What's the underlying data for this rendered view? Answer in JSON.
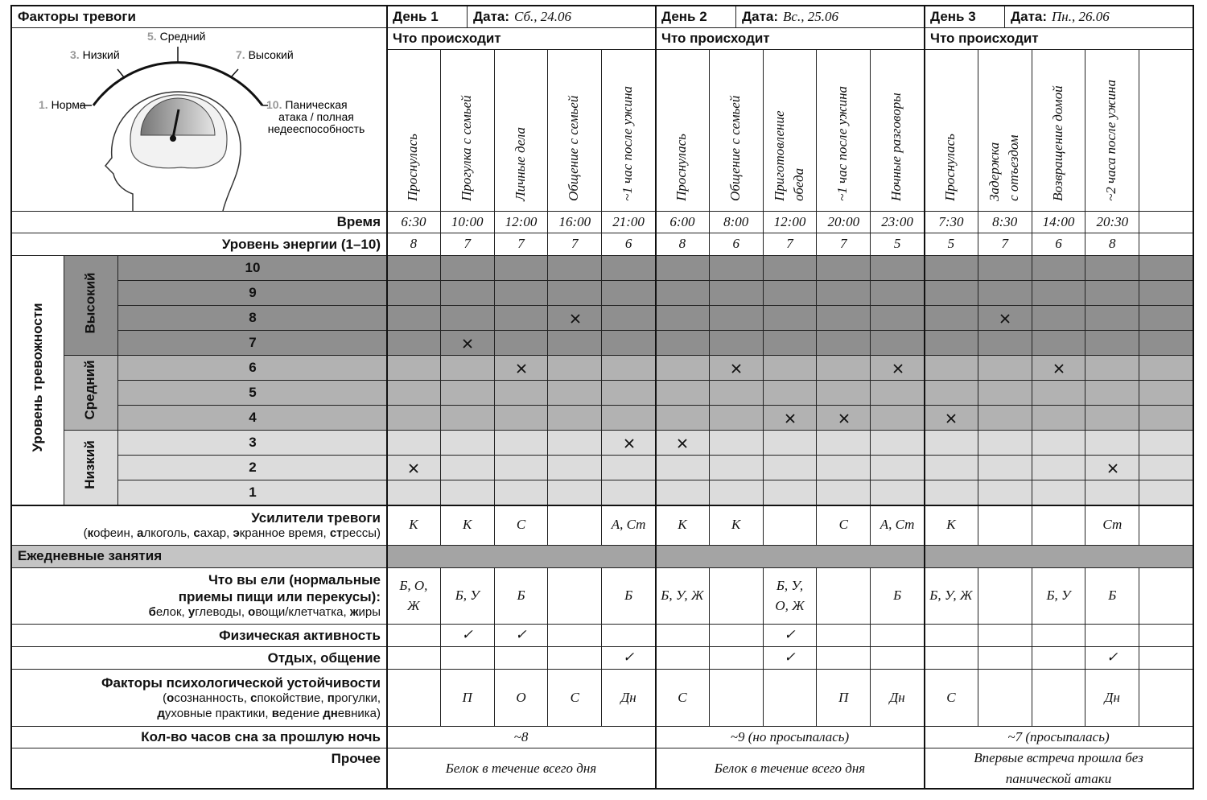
{
  "header": {
    "title": "Факторы тревоги"
  },
  "scale": [
    {
      "num": "1.",
      "lines": [
        "Норма"
      ]
    },
    {
      "num": "3.",
      "lines": [
        "Низкий"
      ]
    },
    {
      "num": "5.",
      "lines": [
        "Средний"
      ]
    },
    {
      "num": "7.",
      "lines": [
        "Высокий"
      ]
    },
    {
      "num": "10.",
      "lines": [
        "Паническая",
        "атака / полная",
        "недееспособность"
      ]
    }
  ],
  "row_labels": {
    "time": "Время",
    "energy": "Уровень энергии (1–10)",
    "anxiety": "Уровень тревожности",
    "boosters": {
      "title": "Усилители тревоги",
      "note": [
        {
          "n": "("
        },
        {
          "b": "к"
        },
        {
          "n": "офеин, "
        },
        {
          "b": "а"
        },
        {
          "n": "лкоголь, "
        },
        {
          "b": "с"
        },
        {
          "n": "ахар, "
        },
        {
          "b": "э"
        },
        {
          "n": "кранное время, "
        },
        {
          "b": "ст"
        },
        {
          "n": "рессы)"
        }
      ]
    },
    "daily": "Ежедневные занятия",
    "food": {
      "title": [
        "Что вы ели (нормальные",
        "приемы пищи или перекусы):"
      ],
      "note": [
        {
          "b": "б"
        },
        {
          "n": "елок, "
        },
        {
          "b": "у"
        },
        {
          "n": "глеводы, "
        },
        {
          "b": "о"
        },
        {
          "n": "вощи/клетчатка, "
        },
        {
          "b": "ж"
        },
        {
          "n": "иры"
        }
      ]
    },
    "physical": "Физическая активность",
    "rest": "Отдых, общение",
    "resilience": {
      "title": "Факторы психологической устойчивости",
      "note_lines": [
        [
          {
            "n": "("
          },
          {
            "b": "о"
          },
          {
            "n": "сознанность, "
          },
          {
            "b": "с"
          },
          {
            "n": "покойствие, "
          },
          {
            "b": "п"
          },
          {
            "n": "рогулки,"
          }
        ],
        [
          {
            "b": "д"
          },
          {
            "n": "уховные практики, "
          },
          {
            "b": "в"
          },
          {
            "n": "едение "
          },
          {
            "b": "дн"
          },
          {
            "n": "евника)"
          }
        ]
      ]
    },
    "sleep": "Кол-во часов сна за прошлую ночь",
    "other": "Прочее"
  },
  "anxiety_groups": [
    {
      "name": "Высокий",
      "levels": [
        10,
        9,
        8,
        7
      ]
    },
    {
      "name": "Средний",
      "levels": [
        6,
        5,
        4
      ]
    },
    {
      "name": "Низкий",
      "levels": [
        3,
        2,
        1
      ]
    }
  ],
  "days": [
    {
      "label": "День 1",
      "date_label": "Дата:",
      "date": "Сб., 24.06",
      "what": "Что происходит",
      "sleep": "~8",
      "other": "Белок в течение всего дня",
      "events": [
        {
          "name": [
            "Проснулась"
          ],
          "time": "6:30",
          "energy": 8,
          "anxiety": 2,
          "boosters": "К",
          "food": "Б, О, Ж"
        },
        {
          "name": [
            "Прогулка с семьей"
          ],
          "time": "10:00",
          "energy": 7,
          "anxiety": 7,
          "boosters": "К",
          "food": "Б, У",
          "physical": "✓",
          "resilience": "П"
        },
        {
          "name": [
            "Личные дела"
          ],
          "time": "12:00",
          "energy": 7,
          "anxiety": 6,
          "boosters": "С",
          "food": "Б",
          "physical": "✓",
          "resilience": "О"
        },
        {
          "name": [
            "Общение с семьей"
          ],
          "time": "16:00",
          "energy": 7,
          "anxiety": 8,
          "resilience": "С"
        },
        {
          "name": [
            "~1 час после ужина"
          ],
          "time": "21:00",
          "energy": 6,
          "anxiety": 3,
          "boosters": "А, Ст",
          "food": "Б",
          "rest": "✓",
          "resilience": "Дн"
        }
      ]
    },
    {
      "label": "День 2",
      "date_label": "Дата:",
      "date": "Вс., 25.06",
      "what": "Что происходит",
      "sleep": "~9 (но просыпалась)",
      "other": "Белок в течение всего дня",
      "events": [
        {
          "name": [
            "Проснулась"
          ],
          "time": "6:00",
          "energy": 8,
          "anxiety": 3,
          "boosters": "К",
          "food": "Б, У, Ж",
          "resilience": "С"
        },
        {
          "name": [
            "Общение с семьей"
          ],
          "time": "8:00",
          "energy": 6,
          "anxiety": 6,
          "boosters": "К"
        },
        {
          "name": [
            "Приготовление",
            "обеда"
          ],
          "time": "12:00",
          "energy": 7,
          "anxiety": 4,
          "food": "Б, У, О, Ж",
          "physical": "✓",
          "rest": "✓"
        },
        {
          "name": [
            "~1 час после ужина"
          ],
          "time": "20:00",
          "energy": 7,
          "anxiety": 4,
          "boosters": "С",
          "resilience": "П"
        },
        {
          "name": [
            "Ночные разговоры"
          ],
          "time": "23:00",
          "energy": 5,
          "anxiety": 6,
          "boosters": "А, Ст",
          "food": "Б",
          "resilience": "Дн"
        }
      ]
    },
    {
      "label": "День 3",
      "date_label": "Дата:",
      "date": "Пн., 26.06",
      "what": "Что происходит",
      "sleep": "~7 (просыпалась)",
      "other": "Впервые встреча прошла без панической атаки",
      "events": [
        {
          "name": [
            "Проснулась"
          ],
          "time": "7:30",
          "energy": 5,
          "anxiety": 4,
          "boosters": "К",
          "food": "Б, У, Ж",
          "resilience": "С"
        },
        {
          "name": [
            "Задержка",
            "с отъездом"
          ],
          "time": "8:30",
          "energy": 7,
          "anxiety": 8
        },
        {
          "name": [
            "Возвращение домой"
          ],
          "time": "14:00",
          "energy": 6,
          "anxiety": 6,
          "food": "Б, У"
        },
        {
          "name": [
            "~2 часа после ужина"
          ],
          "time": "20:30",
          "energy": 8,
          "anxiety": 2,
          "boosters": "Ст",
          "food": "Б",
          "rest": "✓",
          "resilience": "Дн"
        }
      ]
    }
  ]
}
